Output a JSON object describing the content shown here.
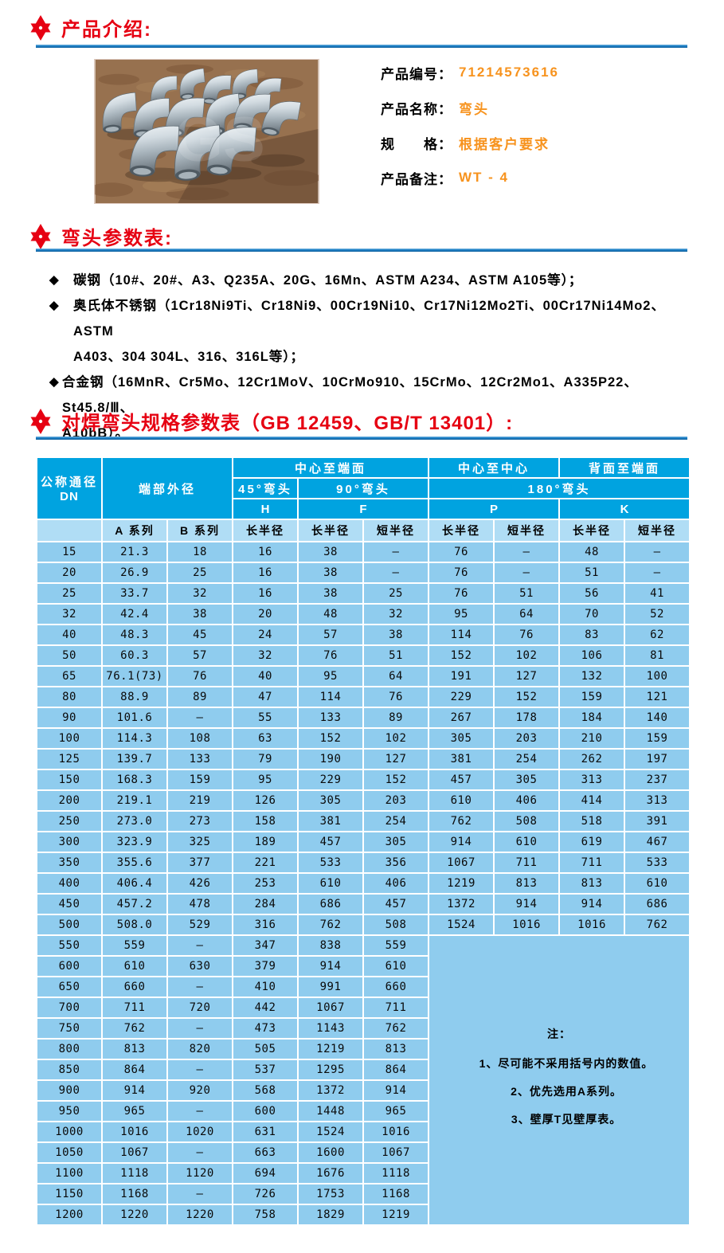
{
  "colors": {
    "heading_red": "#e60012",
    "value_orange": "#f7931e",
    "rule_blue": "#1a7ec6",
    "table_header_blue": "#00a3e0",
    "table_subheader_blue": "#b0ddf5",
    "table_cell_blue": "#8fccee"
  },
  "sections": {
    "intro_title": "产品介绍:",
    "params_title": "弯头参数表:",
    "spec_title": "对焊弯头规格参数表（GB 12459、GB/T 13401）:"
  },
  "product": {
    "fields": [
      {
        "label": "产品编号：",
        "value": "71214573616"
      },
      {
        "label": "产品名称：",
        "value": "弯头"
      },
      {
        "label": "规　　格：",
        "value": "根据客户要求"
      },
      {
        "label": "产品备注：",
        "value": "WT - 4"
      }
    ]
  },
  "materials": [
    {
      "marker": "◆",
      "lines": [
        "碳钢（10#、20#、A3、Q235A、20G、16Mn、ASTM A234、ASTM A105等）；"
      ]
    },
    {
      "marker": "◆",
      "lines": [
        "奥氏体不锈钢（1Cr18Ni9Ti、Cr18Ni9、00Cr19Ni10、Cr17Ni12Mo2Ti、00Cr17Ni14Mo2、ASTM",
        "A403、304 304L、316、316L等）；"
      ]
    },
    {
      "marker": "◆",
      "lines": [
        "合金钢（16MnR、Cr5Mo、12Cr1MoV、10CrMo910、15CrMo、12Cr2Mo1、A335P22、St45.8/Ⅲ、",
        "A10bB）。"
      ]
    }
  ],
  "spec_table": {
    "headers": {
      "dn_line1": "公称通径",
      "dn_line2": "DN",
      "end_od": "端部外径",
      "center_to_end": "中心至端面",
      "center_to_center": "中心至中心",
      "back_to_end": "背面至端面",
      "elbow_45": "45°弯头",
      "elbow_90": "90°弯头",
      "elbow_180": "180°弯头",
      "sym_h": "H",
      "sym_f": "F",
      "sym_p": "P",
      "sym_k": "K",
      "series_a": "A 系列",
      "series_b": "B 系列",
      "long_radius": "长半径",
      "short_radius": "短半径"
    },
    "full_rows": [
      [
        "15",
        "21.3",
        "18",
        "16",
        "38",
        "—",
        "76",
        "—",
        "48",
        "—"
      ],
      [
        "20",
        "26.9",
        "25",
        "16",
        "38",
        "—",
        "76",
        "—",
        "51",
        "—"
      ],
      [
        "25",
        "33.7",
        "32",
        "16",
        "38",
        "25",
        "76",
        "51",
        "56",
        "41"
      ],
      [
        "32",
        "42.4",
        "38",
        "20",
        "48",
        "32",
        "95",
        "64",
        "70",
        "52"
      ],
      [
        "40",
        "48.3",
        "45",
        "24",
        "57",
        "38",
        "114",
        "76",
        "83",
        "62"
      ],
      [
        "50",
        "60.3",
        "57",
        "32",
        "76",
        "51",
        "152",
        "102",
        "106",
        "81"
      ],
      [
        "65",
        "76.1(73)",
        "76",
        "40",
        "95",
        "64",
        "191",
        "127",
        "132",
        "100"
      ],
      [
        "80",
        "88.9",
        "89",
        "47",
        "114",
        "76",
        "229",
        "152",
        "159",
        "121"
      ],
      [
        "90",
        "101.6",
        "—",
        "55",
        "133",
        "89",
        "267",
        "178",
        "184",
        "140"
      ],
      [
        "100",
        "114.3",
        "108",
        "63",
        "152",
        "102",
        "305",
        "203",
        "210",
        "159"
      ],
      [
        "125",
        "139.7",
        "133",
        "79",
        "190",
        "127",
        "381",
        "254",
        "262",
        "197"
      ],
      [
        "150",
        "168.3",
        "159",
        "95",
        "229",
        "152",
        "457",
        "305",
        "313",
        "237"
      ],
      [
        "200",
        "219.1",
        "219",
        "126",
        "305",
        "203",
        "610",
        "406",
        "414",
        "313"
      ],
      [
        "250",
        "273.0",
        "273",
        "158",
        "381",
        "254",
        "762",
        "508",
        "518",
        "391"
      ],
      [
        "300",
        "323.9",
        "325",
        "189",
        "457",
        "305",
        "914",
        "610",
        "619",
        "467"
      ],
      [
        "350",
        "355.6",
        "377",
        "221",
        "533",
        "356",
        "1067",
        "711",
        "711",
        "533"
      ],
      [
        "400",
        "406.4",
        "426",
        "253",
        "610",
        "406",
        "1219",
        "813",
        "813",
        "610"
      ],
      [
        "450",
        "457.2",
        "478",
        "284",
        "686",
        "457",
        "1372",
        "914",
        "914",
        "686"
      ],
      [
        "500",
        "508.0",
        "529",
        "316",
        "762",
        "508",
        "1524",
        "1016",
        "1016",
        "762"
      ]
    ],
    "partial_rows": [
      [
        "550",
        "559",
        "—",
        "347",
        "838",
        "559"
      ],
      [
        "600",
        "610",
        "630",
        "379",
        "914",
        "610"
      ],
      [
        "650",
        "660",
        "—",
        "410",
        "991",
        "660"
      ],
      [
        "700",
        "711",
        "720",
        "442",
        "1067",
        "711"
      ],
      [
        "750",
        "762",
        "—",
        "473",
        "1143",
        "762"
      ],
      [
        "800",
        "813",
        "820",
        "505",
        "1219",
        "813"
      ],
      [
        "850",
        "864",
        "—",
        "537",
        "1295",
        "864"
      ],
      [
        "900",
        "914",
        "920",
        "568",
        "1372",
        "914"
      ],
      [
        "950",
        "965",
        "—",
        "600",
        "1448",
        "965"
      ],
      [
        "1000",
        "1016",
        "1020",
        "631",
        "1524",
        "1016"
      ],
      [
        "1050",
        "1067",
        "—",
        "663",
        "1600",
        "1067"
      ],
      [
        "1100",
        "1118",
        "1120",
        "694",
        "1676",
        "1118"
      ],
      [
        "1150",
        "1168",
        "—",
        "726",
        "1753",
        "1168"
      ],
      [
        "1200",
        "1220",
        "1220",
        "758",
        "1829",
        "1219"
      ]
    ],
    "note": {
      "title": "注：",
      "items": [
        "1、尽可能不采用括号内的数值。",
        "2、优先选用A系列。",
        "3、壁厚T见壁厚表。"
      ]
    }
  }
}
